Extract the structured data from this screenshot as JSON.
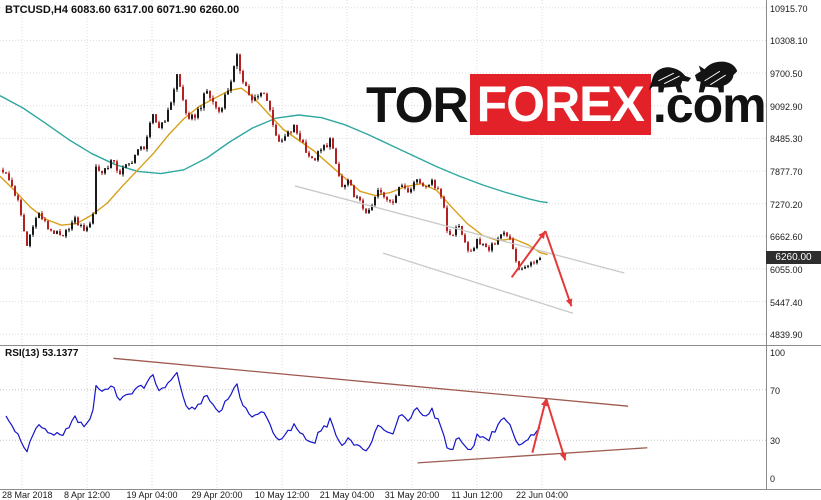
{
  "header": {
    "symbol_line": "BTCUSD,H4 6083.60 6317.00 6071.90 6260.00"
  },
  "watermark": {
    "part1": "TOR",
    "part2": "FOREX",
    "part3": ".com",
    "red": "#E32128"
  },
  "price_tag": {
    "value": "6260.00",
    "bg": "#2E2E2E",
    "fg": "#FFFFFF"
  },
  "rsi_label": "RSI(13) 53.1377",
  "axes": {
    "price_labels": [
      "10915.70",
      "10308.10",
      "9700.50",
      "9092.90",
      "8485.30",
      "7877.70",
      "7270.20",
      "6662.60",
      "6055.00",
      "5447.40",
      "4839.90"
    ],
    "rsi_labels": [
      "100",
      "70",
      "30",
      "0"
    ],
    "time_labels": [
      "28 Mar 2018",
      "8 Apr 12:00",
      "19 Apr 04:00",
      "29 Apr 20:00",
      "10 May 12:00",
      "21 May 04:00",
      "31 May 20:00",
      "11 Jun 12:00",
      "22 Jun 04:00"
    ]
  },
  "chart_data": {
    "type": "candlestick",
    "symbol": "BTCUSD",
    "timeframe": "H4",
    "quote": {
      "open": 6083.6,
      "high": 6317.0,
      "low": 6071.9,
      "close": 6260.0
    },
    "current_price": 6260.0,
    "y_axis": {
      "min": 4839.9,
      "max": 10915.7
    },
    "x_range": [
      "28 Mar 2018",
      "26 Jun 2018"
    ],
    "grid_on": true,
    "candle_up_color": "#1A1A1A",
    "candle_down_color": "#B22222",
    "grid_color": "#DCDCDC",
    "price_waypoints": [
      [
        0,
        7900
      ],
      [
        3,
        7600
      ],
      [
        5,
        7300
      ],
      [
        8,
        6480
      ],
      [
        10,
        6900
      ],
      [
        12,
        7080
      ],
      [
        15,
        6820
      ],
      [
        18,
        6700
      ],
      [
        20,
        6620
      ],
      [
        22,
        6850
      ],
      [
        24,
        6960
      ],
      [
        26,
        6840
      ],
      [
        28,
        6780
      ],
      [
        30,
        7100
      ],
      [
        31,
        7950
      ],
      [
        33,
        7850
      ],
      [
        36,
        8060
      ],
      [
        39,
        7850
      ],
      [
        42,
        8000
      ],
      [
        44,
        8180
      ],
      [
        47,
        8350
      ],
      [
        50,
        8870
      ],
      [
        52,
        8700
      ],
      [
        55,
        8950
      ],
      [
        58,
        9660
      ],
      [
        60,
        9200
      ],
      [
        62,
        8780
      ],
      [
        65,
        9000
      ],
      [
        68,
        9360
      ],
      [
        70,
        9150
      ],
      [
        72,
        8990
      ],
      [
        75,
        9400
      ],
      [
        78,
        9960
      ],
      [
        80,
        9600
      ],
      [
        83,
        9160
      ],
      [
        85,
        9250
      ],
      [
        87,
        9380
      ],
      [
        89,
        9000
      ],
      [
        92,
        8360
      ],
      [
        94,
        8500
      ],
      [
        97,
        8680
      ],
      [
        100,
        8400
      ],
      [
        103,
        8060
      ],
      [
        106,
        8250
      ],
      [
        109,
        8460
      ],
      [
        111,
        8000
      ],
      [
        113,
        7560
      ],
      [
        115,
        7650
      ],
      [
        118,
        7360
      ],
      [
        120,
        7200
      ],
      [
        122,
        7090
      ],
      [
        125,
        7510
      ],
      [
        127,
        7380
      ],
      [
        130,
        7340
      ],
      [
        133,
        7620
      ],
      [
        135,
        7550
      ],
      [
        138,
        7720
      ],
      [
        140,
        7620
      ],
      [
        142,
        7680
      ],
      [
        145,
        7590
      ],
      [
        147,
        7200
      ],
      [
        148,
        6780
      ],
      [
        150,
        6700
      ],
      [
        152,
        6860
      ],
      [
        154,
        6590
      ],
      [
        155,
        6340
      ],
      [
        157,
        6480
      ],
      [
        158,
        6610
      ],
      [
        160,
        6520
      ],
      [
        162,
        6440
      ],
      [
        164,
        6550
      ],
      [
        165,
        6620
      ],
      [
        167,
        6680
      ],
      [
        168,
        6710
      ],
      [
        170,
        6400
      ],
      [
        172,
        6080
      ],
      [
        174,
        6060
      ],
      [
        175,
        6160
      ],
      [
        177,
        6120
      ],
      [
        178,
        6240
      ],
      [
        179,
        6260
      ]
    ],
    "ma_slow": {
      "name": "slow moving average",
      "color": "#2FA8A0",
      "points": [
        [
          0,
          9280
        ],
        [
          0.03,
          9050
        ],
        [
          0.06,
          8760
        ],
        [
          0.09,
          8460
        ],
        [
          0.12,
          8200
        ],
        [
          0.15,
          8000
        ],
        [
          0.18,
          7870
        ],
        [
          0.21,
          7830
        ],
        [
          0.24,
          7900
        ],
        [
          0.27,
          8120
        ],
        [
          0.3,
          8420
        ],
        [
          0.33,
          8680
        ],
        [
          0.36,
          8860
        ],
        [
          0.39,
          8920
        ],
        [
          0.42,
          8870
        ],
        [
          0.45,
          8740
        ],
        [
          0.48,
          8560
        ],
        [
          0.51,
          8360
        ],
        [
          0.54,
          8160
        ],
        [
          0.57,
          7960
        ],
        [
          0.6,
          7780
        ],
        [
          0.63,
          7620
        ],
        [
          0.66,
          7480
        ],
        [
          0.69,
          7360
        ],
        [
          0.705,
          7310
        ],
        [
          0.715,
          7290
        ]
      ]
    },
    "ma_fast": {
      "name": "fast moving average",
      "color": "#D8A018",
      "points": [
        [
          0,
          7780
        ],
        [
          0.02,
          7500
        ],
        [
          0.04,
          7200
        ],
        [
          0.06,
          6980
        ],
        [
          0.08,
          6870
        ],
        [
          0.1,
          6900
        ],
        [
          0.12,
          7060
        ],
        [
          0.14,
          7280
        ],
        [
          0.16,
          7600
        ],
        [
          0.18,
          7900
        ],
        [
          0.2,
          8200
        ],
        [
          0.22,
          8550
        ],
        [
          0.24,
          8850
        ],
        [
          0.26,
          9080
        ],
        [
          0.28,
          9230
        ],
        [
          0.3,
          9380
        ],
        [
          0.315,
          9420
        ],
        [
          0.33,
          9260
        ],
        [
          0.35,
          8950
        ],
        [
          0.37,
          8650
        ],
        [
          0.39,
          8450
        ],
        [
          0.41,
          8250
        ],
        [
          0.43,
          8000
        ],
        [
          0.45,
          7750
        ],
        [
          0.47,
          7500
        ],
        [
          0.49,
          7420
        ],
        [
          0.51,
          7480
        ],
        [
          0.53,
          7590
        ],
        [
          0.55,
          7640
        ],
        [
          0.57,
          7520
        ],
        [
          0.59,
          7200
        ],
        [
          0.61,
          6900
        ],
        [
          0.63,
          6680
        ],
        [
          0.65,
          6580
        ],
        [
          0.67,
          6620
        ],
        [
          0.69,
          6500
        ],
        [
          0.705,
          6360
        ],
        [
          0.715,
          6320
        ]
      ]
    },
    "channel": {
      "color": "#C9C9C9",
      "lines": [
        {
          "from": [
            0.385,
            7600
          ],
          "to": [
            0.815,
            5980
          ]
        },
        {
          "from": [
            0.5,
            6350
          ],
          "to": [
            0.748,
            5230
          ]
        }
      ]
    },
    "forecast_arrows": {
      "color": "#E23A3A",
      "up": {
        "from": [
          0.668,
          5900
        ],
        "to": [
          0.712,
          6760
        ]
      },
      "down": {
        "from": [
          0.712,
          6760
        ],
        "to": [
          0.746,
          5360
        ]
      }
    },
    "rsi_data": {
      "period": 13,
      "current": 53.1377,
      "levels": [
        100,
        70,
        30,
        0
      ],
      "line_color": "#1414CC",
      "wedge_color": "#9E5A50",
      "wedge": [
        {
          "from": [
            0.148,
            95
          ],
          "to": [
            0.82,
            57
          ]
        },
        {
          "from": [
            0.545,
            12
          ],
          "to": [
            0.845,
            24
          ]
        }
      ],
      "arrows": {
        "color": "#E23A3A",
        "up": {
          "from": [
            0.695,
            20
          ],
          "to": [
            0.713,
            63
          ]
        },
        "down": {
          "from": [
            0.713,
            63
          ],
          "to": [
            0.738,
            14
          ]
        }
      }
    }
  }
}
